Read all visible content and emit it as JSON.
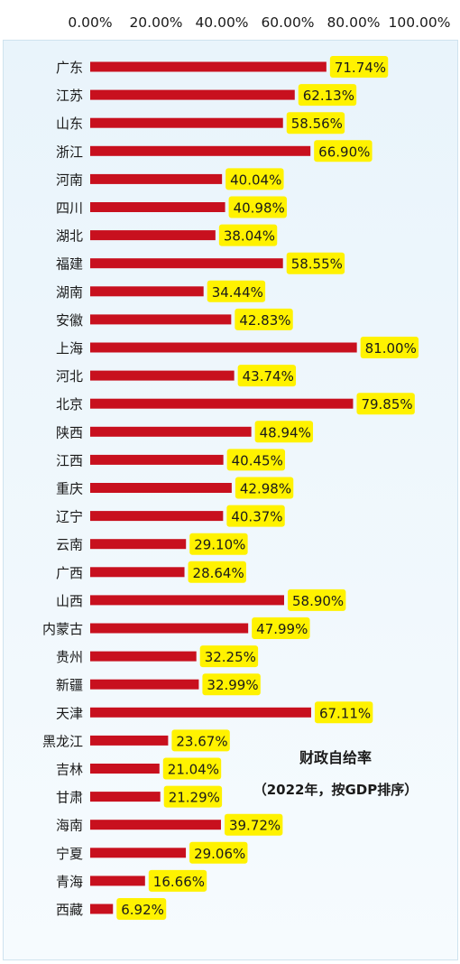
{
  "chart_data": {
    "type": "bar",
    "orientation": "horizontal",
    "title": "财政自给率",
    "subtitle": "（2022年，按GDP排序）",
    "xlim": [
      0,
      100
    ],
    "x_ticks": [
      "0.00%",
      "20.00%",
      "40.00%",
      "60.00%",
      "80.00%",
      "100.00%"
    ],
    "categories": [
      "广东",
      "江苏",
      "山东",
      "浙江",
      "河南",
      "四川",
      "湖北",
      "福建",
      "湖南",
      "安徽",
      "上海",
      "河北",
      "北京",
      "陕西",
      "江西",
      "重庆",
      "辽宁",
      "云南",
      "广西",
      "山西",
      "内蒙古",
      "贵州",
      "新疆",
      "天津",
      "黑龙江",
      "吉林",
      "甘肃",
      "海南",
      "宁夏",
      "青海",
      "西藏"
    ],
    "values": [
      71.74,
      62.13,
      58.56,
      66.9,
      40.04,
      40.98,
      38.04,
      58.55,
      34.44,
      42.83,
      81.0,
      43.74,
      79.85,
      48.94,
      40.45,
      42.98,
      40.37,
      29.1,
      28.64,
      58.9,
      47.99,
      32.25,
      32.99,
      67.11,
      23.67,
      21.04,
      21.29,
      39.72,
      29.06,
      16.66,
      6.92
    ],
    "data_labels": [
      "71.74%",
      "62.13%",
      "58.56%",
      "66.90%",
      "40.04%",
      "40.98%",
      "38.04%",
      "58.55%",
      "34.44%",
      "42.83%",
      "81.00%",
      "43.74%",
      "79.85%",
      "48.94%",
      "40.45%",
      "42.98%",
      "40.37%",
      "29.10%",
      "28.64%",
      "58.90%",
      "47.99%",
      "32.25%",
      "32.99%",
      "67.11%",
      "23.67%",
      "21.04%",
      "21.29%",
      "39.72%",
      "29.06%",
      "16.66%",
      "6.92%"
    ],
    "grid": false,
    "bar_color": "#c8101e",
    "label_highlight_color": "#fff200"
  }
}
